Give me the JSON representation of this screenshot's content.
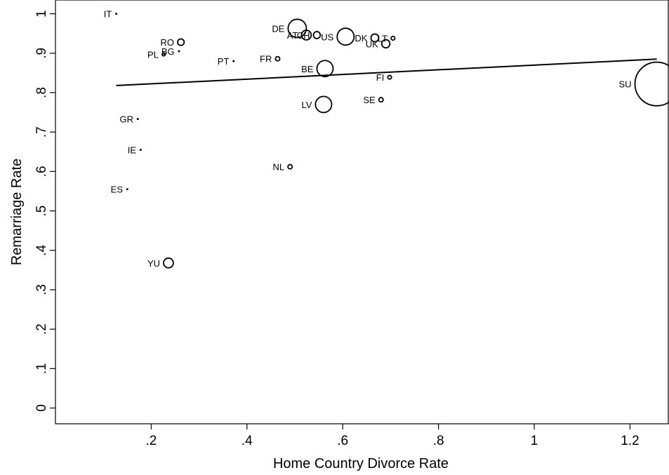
{
  "chart_data": {
    "type": "scatter",
    "title": "",
    "xlabel": "Home Country Divorce Rate",
    "ylabel": "Remarriage Rate",
    "xlim": [
      0.0,
      1.28
    ],
    "ylim": [
      -0.04,
      1.035
    ],
    "x_ticks": [
      {
        "value": 0.2,
        "label": ".2"
      },
      {
        "value": 0.4,
        "label": ".4"
      },
      {
        "value": 0.6,
        "label": ".6"
      },
      {
        "value": 0.8,
        "label": ".8"
      },
      {
        "value": 1.0,
        "label": "1"
      },
      {
        "value": 1.2,
        "label": "1.2"
      }
    ],
    "y_ticks": [
      {
        "value": 0.0,
        "label": "0"
      },
      {
        "value": 0.1,
        "label": ".1"
      },
      {
        "value": 0.2,
        "label": ".2"
      },
      {
        "value": 0.3,
        "label": ".3"
      },
      {
        "value": 0.4,
        "label": ".4"
      },
      {
        "value": 0.5,
        "label": ".5"
      },
      {
        "value": 0.6,
        "label": ".6"
      },
      {
        "value": 0.7,
        "label": ".7"
      },
      {
        "value": 0.8,
        "label": ".8"
      },
      {
        "value": 0.9,
        "label": ".9"
      },
      {
        "value": 1.0,
        "label": "1"
      }
    ],
    "grid": false,
    "marker_size_note": "marker area scales with sample weight",
    "points": [
      {
        "label": "IT",
        "x": 0.127,
        "y": 1.0,
        "size": 1
      },
      {
        "label": "RO",
        "x": 0.262,
        "y": 0.928,
        "size": 18
      },
      {
        "label": "BG",
        "x": 0.258,
        "y": 0.905,
        "size": 1
      },
      {
        "label": "PL",
        "x": 0.226,
        "y": 0.897,
        "size": 4
      },
      {
        "label": "PT",
        "x": 0.372,
        "y": 0.88,
        "size": 1
      },
      {
        "label": "FR",
        "x": 0.464,
        "y": 0.886,
        "size": 8
      },
      {
        "label": "DE",
        "x": 0.505,
        "y": 0.963,
        "size": 140
      },
      {
        "label": "AT",
        "x": 0.524,
        "y": 0.946,
        "size": 40
      },
      {
        "label": "CH",
        "x": 0.546,
        "y": 0.946,
        "size": 20
      },
      {
        "label": "US",
        "x": 0.606,
        "y": 0.942,
        "size": 120
      },
      {
        "label": "DK",
        "x": 0.667,
        "y": 0.939,
        "size": 25
      },
      {
        "label": "UK",
        "x": 0.69,
        "y": 0.924,
        "size": 28
      },
      {
        "label": "LT",
        "x": 0.705,
        "y": 0.938,
        "size": 6
      },
      {
        "label": "BE",
        "x": 0.563,
        "y": 0.861,
        "size": 110
      },
      {
        "label": "FI",
        "x": 0.698,
        "y": 0.839,
        "size": 6
      },
      {
        "label": "LV",
        "x": 0.56,
        "y": 0.77,
        "size": 110
      },
      {
        "label": "SE",
        "x": 0.68,
        "y": 0.782,
        "size": 8
      },
      {
        "label": "SU",
        "x": 1.256,
        "y": 0.822,
        "size": 800
      },
      {
        "label": "GR",
        "x": 0.172,
        "y": 0.733,
        "size": 1
      },
      {
        "label": "IE",
        "x": 0.178,
        "y": 0.655,
        "size": 1
      },
      {
        "label": "NL",
        "x": 0.49,
        "y": 0.612,
        "size": 8
      },
      {
        "label": "ES",
        "x": 0.15,
        "y": 0.555,
        "size": 1
      },
      {
        "label": "YU",
        "x": 0.236,
        "y": 0.368,
        "size": 40
      }
    ],
    "fit_line": {
      "x": [
        0.127,
        1.256
      ],
      "y": [
        0.818,
        0.885
      ]
    }
  }
}
